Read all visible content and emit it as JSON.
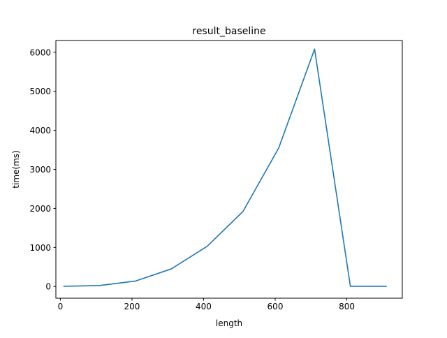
{
  "chart_data": {
    "type": "line",
    "title": "result_baseline",
    "xlabel": "length",
    "ylabel": "time(ms)",
    "xlim": [
      -12.5,
      955
    ],
    "ylim": [
      -300,
      6300
    ],
    "x_ticks": [
      0,
      200,
      400,
      600,
      800
    ],
    "y_ticks": [
      0,
      1000,
      2000,
      3000,
      4000,
      5000,
      6000
    ],
    "grid": false,
    "series": [
      {
        "color": "#1f77b4",
        "x": [
          10,
          110,
          210,
          310,
          410,
          510,
          610,
          710,
          810,
          910
        ],
        "y": [
          5,
          25,
          140,
          450,
          1030,
          1920,
          3550,
          6080,
          5,
          5
        ]
      }
    ]
  }
}
